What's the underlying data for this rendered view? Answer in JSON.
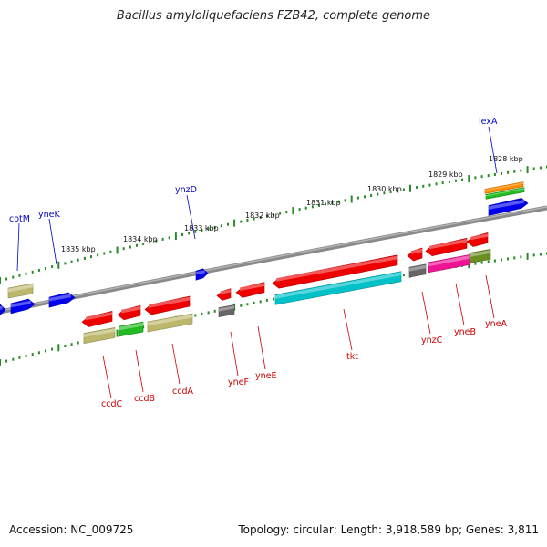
{
  "title": "Bacillus amyloliquefaciens FZB42, complete genome",
  "footer": {
    "accession": "Accession: NC_009725",
    "summary": "Topology: circular; Length: 3,918,589 bp; Genes: 3,811"
  },
  "scale_labels": [
    "1828 kbp",
    "1829 kbp",
    "1830 kbp",
    "1831 kbp",
    "1832 kbp",
    "1833 kbp",
    "1834 kbp",
    "1835 kbp"
  ],
  "colors": {
    "backbone": "#777777",
    "tick": "#2a8a2a",
    "label_forward": "#0000cc",
    "label_reverse": "#cc0000",
    "gene_red": "#ee0000",
    "gene_blue": "#0000ee",
    "gene_cyan": "#00c0c8",
    "gene_green": "#22bb22",
    "gene_khaki": "#bdb76b",
    "gene_olive": "#6b8e23",
    "gene_magenta": "#ee1493",
    "gene_orange": "#ff8c00",
    "gene_gray": "#666666"
  },
  "gene_labels": {
    "lexA": "lexA",
    "ynzD": "ynzD",
    "cotM": "cotM",
    "yneK": "yneK",
    "ccdC": "ccdC",
    "ccdB": "ccdB",
    "ccdA": "ccdA",
    "yneF": "yneF",
    "yneE": "yneE",
    "tkt": "tkt",
    "ynzC": "ynzC",
    "yneB": "yneB",
    "yneA": "yneA"
  }
}
